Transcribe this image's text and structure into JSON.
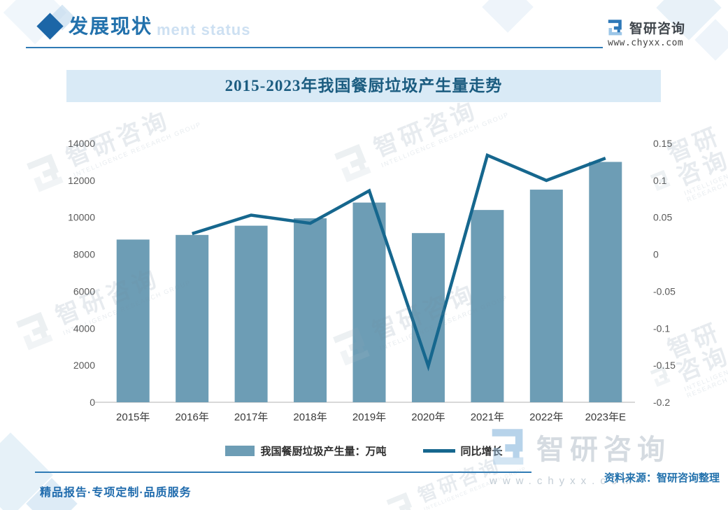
{
  "header": {
    "title": "发展现状",
    "faded_subtitle": "ment status",
    "brand_name": "智研咨询",
    "brand_site": "www.chyxx.com"
  },
  "chart": {
    "title": "2015-2023年我国餐厨垃圾产生量走势"
  },
  "chart_data": {
    "type": "bar",
    "title": "2015-2023年我国餐厨垃圾产生量走势",
    "categories": [
      "2015年",
      "2016年",
      "2017年",
      "2018年",
      "2019年",
      "2020年",
      "2021年",
      "2022年",
      "2023年E"
    ],
    "series": [
      {
        "name": "我国餐厨垃圾产生量：万吨",
        "type": "bar",
        "axis": "left",
        "values": [
          8800,
          9050,
          9550,
          9950,
          10800,
          9150,
          10400,
          11500,
          13000
        ]
      },
      {
        "name": "同比增长",
        "type": "line",
        "axis": "right",
        "values": [
          null,
          0.028,
          0.053,
          0.042,
          0.086,
          -0.151,
          0.134,
          0.1,
          0.13
        ]
      }
    ],
    "left_axis": {
      "min": 0,
      "max": 14000,
      "step": 2000,
      "ticks": [
        "14000",
        "12000",
        "10000",
        "8000",
        "6000",
        "4000",
        "2000",
        "0"
      ]
    },
    "right_axis": {
      "min": -0.2,
      "max": 0.15,
      "step": 0.05,
      "ticks": [
        "0.15",
        "0.1",
        "0.05",
        "0",
        "-0.05",
        "-0.1",
        "-0.15",
        "-0.2"
      ]
    },
    "grid": "off",
    "legend_position": "bottom"
  },
  "legend": {
    "bar_label": "我国餐厨垃圾产生量：万吨",
    "line_label": "同比增长"
  },
  "footer": {
    "tagline": "精品报告·专项定制·品质服务",
    "source": "资料来源：智研咨询整理",
    "watermark_brand": "智研咨询",
    "watermark_site": "www.chyxx.com"
  },
  "watermark": {
    "brand": "智研咨询",
    "subtext": "INTELLIGENCE RESEARCH GROUP"
  },
  "colors": {
    "bar": "#6d9db5",
    "line": "#16678e",
    "accent_blue": "#2271ac",
    "title_text": "#1b5c80",
    "title_band": "#d9eaf6",
    "axis_text": "#595959"
  }
}
